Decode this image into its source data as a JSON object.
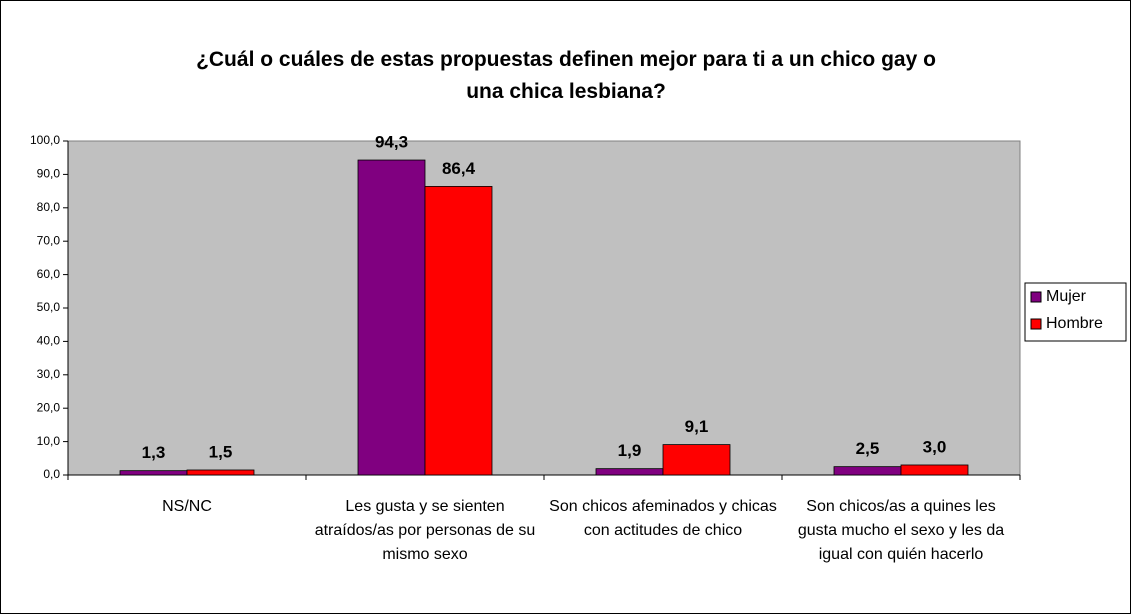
{
  "chart_data": {
    "type": "bar",
    "title": "¿Cuál o cuáles de estas propuestas definen mejor para ti a un chico gay o una chica lesbiana?",
    "categories": [
      "NS/NC",
      "Les gusta y se sienten atraídos/as por personas de su mismo sexo",
      "Son chicos afeminados y chicas con actitudes de chico",
      "Son chicos/as a quines les gusta mucho el sexo y les da igual con quién hacerlo"
    ],
    "series": [
      {
        "name": "Mujer",
        "color": "#800080",
        "values": [
          1.3,
          94.3,
          1.9,
          2.5
        ],
        "value_labels": [
          "1,3",
          "94,3",
          "1,9",
          "2,5"
        ]
      },
      {
        "name": "Hombre",
        "color": "#ff0000",
        "values": [
          1.5,
          86.4,
          9.1,
          3.0
        ],
        "value_labels": [
          "1,5",
          "86,4",
          "9,1",
          "3,0"
        ]
      }
    ],
    "ylim": [
      0,
      100
    ],
    "yticks": [
      {
        "value": 0,
        "label": "0,0"
      },
      {
        "value": 10,
        "label": "10,0"
      },
      {
        "value": 20,
        "label": "20,0"
      },
      {
        "value": 30,
        "label": "30,0"
      },
      {
        "value": 40,
        "label": "40,0"
      },
      {
        "value": 50,
        "label": "50,0"
      },
      {
        "value": 60,
        "label": "60,0"
      },
      {
        "value": 70,
        "label": "70,0"
      },
      {
        "value": 80,
        "label": "80,0"
      },
      {
        "value": 90,
        "label": "90,0"
      },
      {
        "value": 100,
        "label": "100,0"
      }
    ],
    "legend": "right",
    "plot_background": "#c0c0c0"
  }
}
